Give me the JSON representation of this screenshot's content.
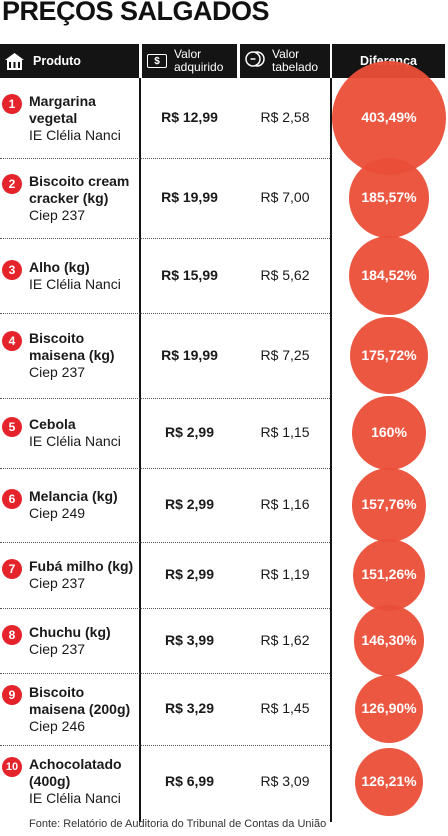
{
  "title": "PREÇOS SALGADOS",
  "header": {
    "produto": "Produto",
    "valor_adquirido": [
      "Valor",
      "adquirido"
    ],
    "valor_tabelado": [
      "Valor",
      "tabelado"
    ],
    "diferenca": "Diferença"
  },
  "icons": {
    "produto": "house-icon",
    "adquirido": "money-icon",
    "tabelado": "coins-icon"
  },
  "colors": {
    "accent": "#e4232b",
    "bubble": "#eb4e38",
    "header_bg": "#141414"
  },
  "source": "Fonte: Relatório de Auditoria do Tribunal de Contas da União",
  "chart_data": {
    "type": "table",
    "title": "PREÇOS SALGADOS",
    "columns": [
      "Produto",
      "Valor adquirido",
      "Valor tabelado",
      "Diferença"
    ],
    "rows": [
      {
        "n": "1",
        "name": [
          "Margarina",
          "vegetal"
        ],
        "school": [
          "IE Clélia Nanci"
        ],
        "adquirido": "R$ 12,99",
        "tabelado": "R$ 2,58",
        "diferenca": "403,49%",
        "pct": 403.49
      },
      {
        "n": "2",
        "name": [
          "Biscoito cream",
          "cracker (kg)"
        ],
        "school": [
          "Ciep 237"
        ],
        "adquirido": "R$ 19,99",
        "tabelado": "R$ 7,00",
        "diferenca": "185,57%",
        "pct": 185.57
      },
      {
        "n": "3",
        "name": [
          "Alho (kg)"
        ],
        "school": [
          "IE Clélia Nanci"
        ],
        "adquirido": "R$ 15,99",
        "tabelado": "R$ 5,62",
        "diferenca": "184,52%",
        "pct": 184.52
      },
      {
        "n": "4",
        "name": [
          "Biscoito",
          "maisena (kg)"
        ],
        "school": [
          "Ciep 237"
        ],
        "adquirido": "R$ 19,99",
        "tabelado": "R$ 7,25",
        "diferenca": "175,72%",
        "pct": 175.72
      },
      {
        "n": "5",
        "name": [
          "Cebola"
        ],
        "school": [
          "IE Clélia Nanci"
        ],
        "adquirido": "R$ 2,99",
        "tabelado": "R$ 1,15",
        "diferenca": "160%",
        "pct": 160
      },
      {
        "n": "6",
        "name": [
          "Melancia (kg)"
        ],
        "school": [
          "Ciep 249"
        ],
        "adquirido": "R$ 2,99",
        "tabelado": "R$ 1,16",
        "diferenca": "157,76%",
        "pct": 157.76
      },
      {
        "n": "7",
        "name": [
          "Fubá milho (kg)"
        ],
        "school": [
          "Ciep 237"
        ],
        "adquirido": "R$ 2,99",
        "tabelado": "R$ 1,19",
        "diferenca": "151,26%",
        "pct": 151.26
      },
      {
        "n": "8",
        "name": [
          "Chuchu (kg)"
        ],
        "school": [
          "Ciep 237"
        ],
        "adquirido": "R$ 3,99",
        "tabelado": "R$ 1,62",
        "diferenca": "146,30%",
        "pct": 146.3
      },
      {
        "n": "9",
        "name": [
          "Biscoito",
          "maisena (200g)"
        ],
        "school": [
          "Ciep 246"
        ],
        "adquirido": "R$ 3,29",
        "tabelado": "R$ 1,45",
        "diferenca": "126,90%",
        "pct": 126.9
      },
      {
        "n": "10",
        "name": [
          "Achocolatado",
          "(400g)"
        ],
        "school": [
          "IE Clélia Nanci"
        ],
        "adquirido": "R$ 6,99",
        "tabelado": "R$ 3,09",
        "diferenca": "126,21%",
        "pct": 126.21
      }
    ]
  }
}
